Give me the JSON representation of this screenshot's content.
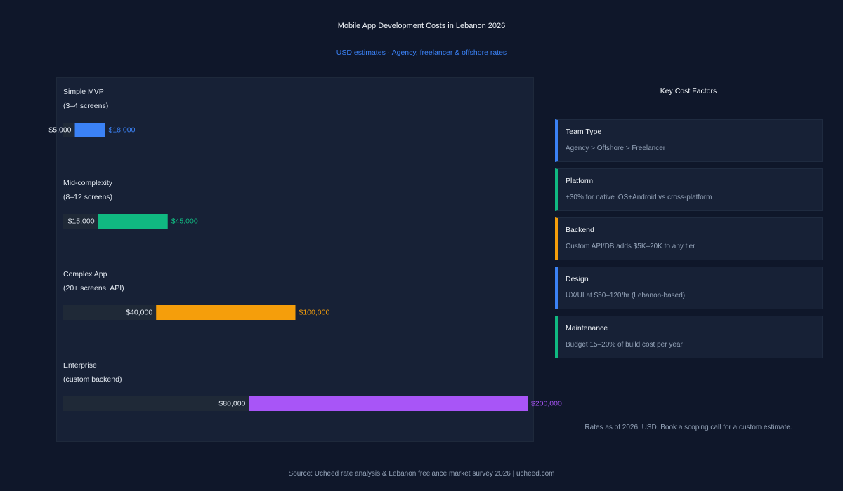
{
  "title": "Mobile App Development Costs in Lebanon 2026",
  "subtitle": "USD estimates · Agency, freelancer & offshore rates",
  "chart_data": {
    "type": "bar",
    "orientation": "horizontal",
    "title": "Mobile App Development Costs in Lebanon 2026",
    "subtitle": "USD estimates · Agency, freelancer & offshore rates",
    "categories": [
      {
        "name": "Simple MVP",
        "detail": "(3–4 screens)"
      },
      {
        "name": "Mid-complexity",
        "detail": "(8–12 screens)"
      },
      {
        "name": "Complex App",
        "detail": "(20+ screens, API)"
      },
      {
        "name": "Enterprise",
        "detail": "(custom backend)"
      }
    ],
    "ranges": [
      {
        "min": 5000,
        "max": 18000,
        "min_label": "$5,000",
        "max_label": "$18,000",
        "color": "#3b82f6"
      },
      {
        "min": 15000,
        "max": 45000,
        "min_label": "$15,000",
        "max_label": "$45,000",
        "color": "#10b981"
      },
      {
        "min": 40000,
        "max": 100000,
        "min_label": "$40,000",
        "max_label": "$100,000",
        "color": "#f59e0b"
      },
      {
        "min": 80000,
        "max": 200000,
        "min_label": "$80,000",
        "max_label": "$200,000",
        "color": "#a855f7"
      }
    ],
    "xlim": [
      0,
      200000
    ],
    "grid": false,
    "legend": "none"
  },
  "factors_title": "Key Cost Factors",
  "factors": [
    {
      "name": "Team Type",
      "desc": "Agency > Offshore > Freelancer",
      "color": "#3b82f6"
    },
    {
      "name": "Platform",
      "desc": "+30% for native iOS+Android vs cross-platform",
      "color": "#10b981"
    },
    {
      "name": "Backend",
      "desc": "Custom API/DB adds $5K–20K to any tier",
      "color": "#f59e0b"
    },
    {
      "name": "Design",
      "desc": "UX/UI at $50–120/hr (Lebanon-based)",
      "color": "#3b82f6"
    },
    {
      "name": "Maintenance",
      "desc": "Budget 15–20% of build cost per year",
      "color": "#10b981"
    }
  ],
  "note": "Rates as of 2026, USD. Book a scoping call for a custom estimate.",
  "source": "Source: Ucheed rate analysis & Lebanon freelance market survey 2026 | ucheed.com"
}
